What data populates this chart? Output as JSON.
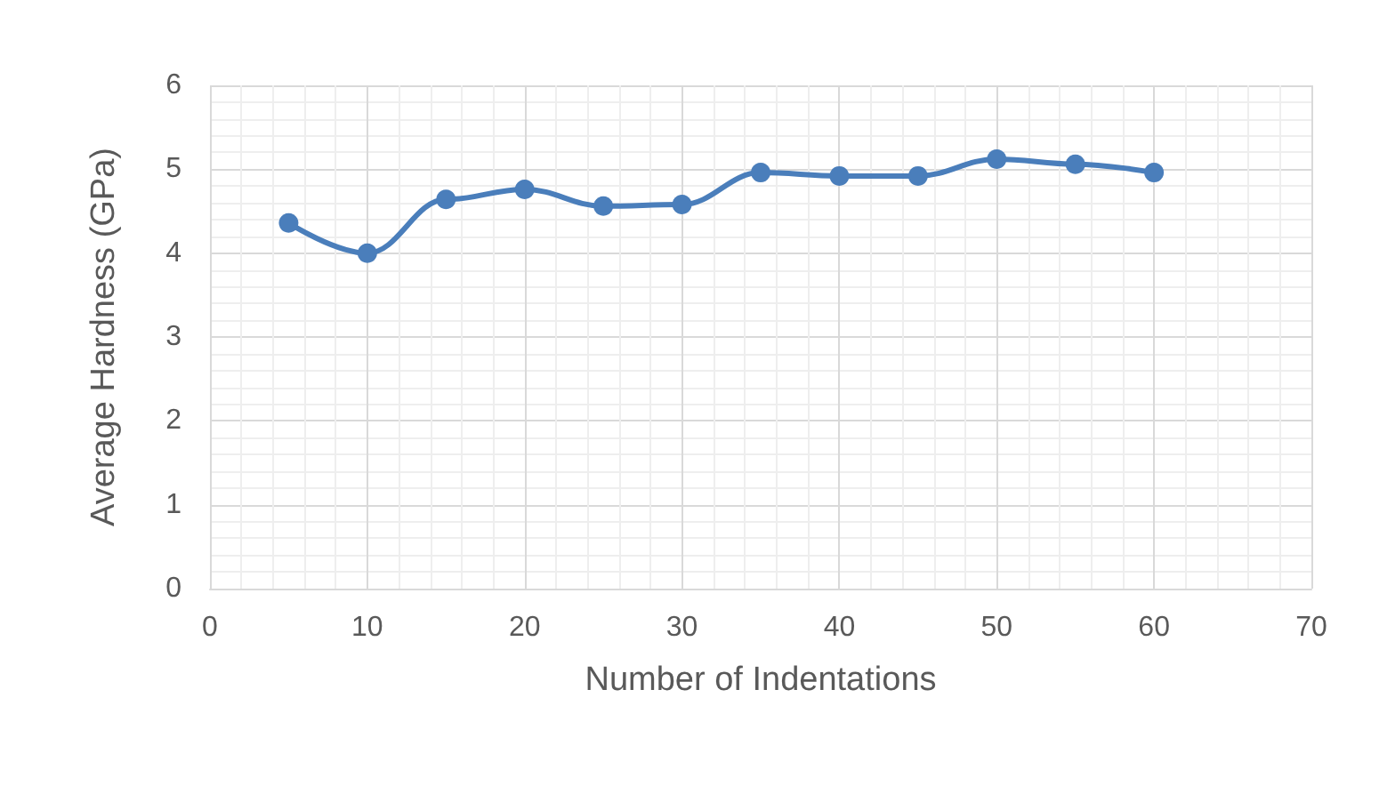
{
  "chart_data": {
    "type": "line",
    "xlabel": "Number of Indentations",
    "ylabel": "Average Hardness (GPa)",
    "x": [
      5,
      10,
      15,
      20,
      25,
      30,
      35,
      40,
      45,
      50,
      55,
      60
    ],
    "series": [
      {
        "color": "#4a7ebb",
        "values": [
          4.36,
          4.0,
          4.64,
          4.76,
          4.56,
          4.58,
          4.96,
          4.92,
          4.92,
          5.12,
          5.06,
          4.96
        ]
      }
    ],
    "xlim": [
      0,
      70
    ],
    "xticks": [
      0,
      10,
      20,
      30,
      40,
      50,
      60,
      70
    ],
    "ylim": [
      0,
      6
    ],
    "yticks": [
      0,
      1,
      2,
      3,
      4,
      5,
      6
    ],
    "grid": true,
    "marker": "circle",
    "line_style": "solid"
  }
}
